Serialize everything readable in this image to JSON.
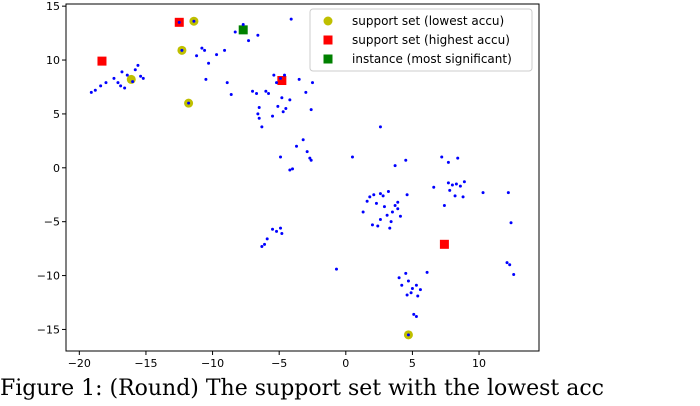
{
  "chart_data": {
    "type": "scatter",
    "title": "",
    "xlabel": "",
    "ylabel": "",
    "xlim": [
      -21,
      14.5
    ],
    "ylim": [
      -17,
      15.2
    ],
    "xticks": [
      -20,
      -15,
      -10,
      -5,
      0,
      5,
      10
    ],
    "yticks": [
      -15,
      -10,
      -5,
      0,
      5,
      10,
      15
    ],
    "legend_position": "top-right",
    "series": [
      {
        "name": "support set (lowest accu)",
        "marker": "circle",
        "color": "#bfbf00",
        "points": [
          [
            -11.4,
            13.6
          ],
          [
            -12.3,
            10.9
          ],
          [
            -16.1,
            8.2
          ],
          [
            -11.8,
            6.0
          ],
          [
            4.7,
            -15.5
          ]
        ]
      },
      {
        "name": "support set (highest accu)",
        "marker": "square",
        "color": "#ff0000",
        "points": [
          [
            -12.5,
            13.5
          ],
          [
            -18.3,
            9.9
          ],
          [
            -4.8,
            8.1
          ],
          [
            7.4,
            -7.1
          ]
        ]
      },
      {
        "name": "instance (most significant)",
        "marker": "square",
        "color": "#008000",
        "points": [
          [
            -7.7,
            12.8
          ]
        ]
      },
      {
        "name": "",
        "marker": "dot",
        "color": "#0000ff",
        "points": [
          [
            -19.1,
            7.0
          ],
          [
            -18.8,
            7.2
          ],
          [
            -18.4,
            7.6
          ],
          [
            -18.0,
            7.9
          ],
          [
            -17.4,
            8.3
          ],
          [
            -17.1,
            7.9
          ],
          [
            -16.9,
            7.6
          ],
          [
            -16.6,
            7.4
          ],
          [
            -16.8,
            8.9
          ],
          [
            -16.4,
            8.6
          ],
          [
            -16.0,
            8.0
          ],
          [
            -15.8,
            9.1
          ],
          [
            -15.6,
            9.5
          ],
          [
            -15.4,
            8.5
          ],
          [
            -15.2,
            8.3
          ],
          [
            -11.4,
            13.6
          ],
          [
            -12.5,
            13.5
          ],
          [
            -12.3,
            10.9
          ],
          [
            -11.8,
            6.0
          ],
          [
            -11.2,
            10.4
          ],
          [
            -10.8,
            11.1
          ],
          [
            -10.6,
            10.9
          ],
          [
            -10.3,
            9.7
          ],
          [
            -10.5,
            8.2
          ],
          [
            -9.7,
            10.5
          ],
          [
            -9.1,
            10.9
          ],
          [
            -8.9,
            7.9
          ],
          [
            -8.6,
            6.8
          ],
          [
            -8.3,
            12.6
          ],
          [
            -7.7,
            13.3
          ],
          [
            -7.3,
            11.8
          ],
          [
            -6.6,
            12.3
          ],
          [
            -7.0,
            7.1
          ],
          [
            -6.7,
            6.9
          ],
          [
            -6.5,
            5.6
          ],
          [
            -6.6,
            5.0
          ],
          [
            -6.5,
            4.6
          ],
          [
            -6.3,
            3.8
          ],
          [
            -6.0,
            7.1
          ],
          [
            -5.8,
            6.9
          ],
          [
            -5.4,
            8.6
          ],
          [
            -5.2,
            7.9
          ],
          [
            -4.9,
            8.3
          ],
          [
            -4.6,
            8.6
          ],
          [
            -4.8,
            6.5
          ],
          [
            -4.5,
            5.5
          ],
          [
            -4.2,
            6.3
          ],
          [
            -4.1,
            13.8
          ],
          [
            -3.5,
            8.2
          ],
          [
            -3.0,
            7.0
          ],
          [
            -2.6,
            5.4
          ],
          [
            -2.5,
            7.9
          ],
          [
            -5.1,
            5.7
          ],
          [
            -4.7,
            5.2
          ],
          [
            -5.5,
            4.8
          ],
          [
            -3.7,
            2.0
          ],
          [
            -3.2,
            2.6
          ],
          [
            -2.9,
            1.5
          ],
          [
            -2.7,
            0.9
          ],
          [
            -2.6,
            0.7
          ],
          [
            -4.2,
            -0.2
          ],
          [
            -4.0,
            -0.1
          ],
          [
            -4.9,
            1.0
          ],
          [
            0.5,
            1.0
          ],
          [
            2.6,
            3.8
          ],
          [
            4.5,
            0.7
          ],
          [
            3.7,
            0.2
          ],
          [
            -5.9,
            -6.6
          ],
          [
            -5.5,
            -5.7
          ],
          [
            -5.2,
            -5.9
          ],
          [
            -4.9,
            -5.6
          ],
          [
            -4.8,
            -6.1
          ],
          [
            -6.1,
            -7.1
          ],
          [
            -6.3,
            -7.3
          ],
          [
            1.3,
            -4.1
          ],
          [
            1.8,
            -2.7
          ],
          [
            2.1,
            -2.5
          ],
          [
            2.3,
            -3.3
          ],
          [
            2.6,
            -2.4
          ],
          [
            2.8,
            -2.6
          ],
          [
            2.9,
            -3.6
          ],
          [
            3.1,
            -4.4
          ],
          [
            3.4,
            -5.0
          ],
          [
            3.5,
            -4.1
          ],
          [
            3.7,
            -3.5
          ],
          [
            3.9,
            -3.8
          ],
          [
            4.1,
            -4.5
          ],
          [
            3.9,
            -3.2
          ],
          [
            2.4,
            -5.4
          ],
          [
            2.0,
            -5.3
          ],
          [
            3.3,
            -5.6
          ],
          [
            2.6,
            -4.8
          ],
          [
            1.6,
            -3.1
          ],
          [
            4.6,
            -2.5
          ],
          [
            3.2,
            -2.2
          ],
          [
            7.2,
            1.0
          ],
          [
            7.7,
            0.5
          ],
          [
            8.4,
            0.9
          ],
          [
            6.6,
            -1.8
          ],
          [
            7.4,
            -3.5
          ],
          [
            7.7,
            -1.4
          ],
          [
            8.0,
            -1.6
          ],
          [
            8.3,
            -1.5
          ],
          [
            8.6,
            -1.7
          ],
          [
            8.9,
            -1.3
          ],
          [
            7.8,
            -2.1
          ],
          [
            8.2,
            -2.6
          ],
          [
            8.8,
            -2.7
          ],
          [
            10.3,
            -2.3
          ],
          [
            12.2,
            -2.3
          ],
          [
            12.4,
            -5.1
          ],
          [
            12.1,
            -8.8
          ],
          [
            12.3,
            -9.0
          ],
          [
            12.6,
            -9.9
          ],
          [
            -0.7,
            -9.4
          ],
          [
            4.0,
            -10.2
          ],
          [
            4.5,
            -9.8
          ],
          [
            4.7,
            -10.5
          ],
          [
            4.2,
            -10.9
          ],
          [
            5.0,
            -11.2
          ],
          [
            5.3,
            -10.9
          ],
          [
            5.6,
            -11.3
          ],
          [
            4.9,
            -11.6
          ],
          [
            5.4,
            -11.9
          ],
          [
            4.6,
            -11.8
          ],
          [
            6.1,
            -9.7
          ],
          [
            5.1,
            -13.6
          ],
          [
            5.3,
            -13.8
          ],
          [
            4.7,
            -15.5
          ]
        ]
      }
    ]
  },
  "caption": "Figure 1: (Round) The support set with the lowest acc"
}
